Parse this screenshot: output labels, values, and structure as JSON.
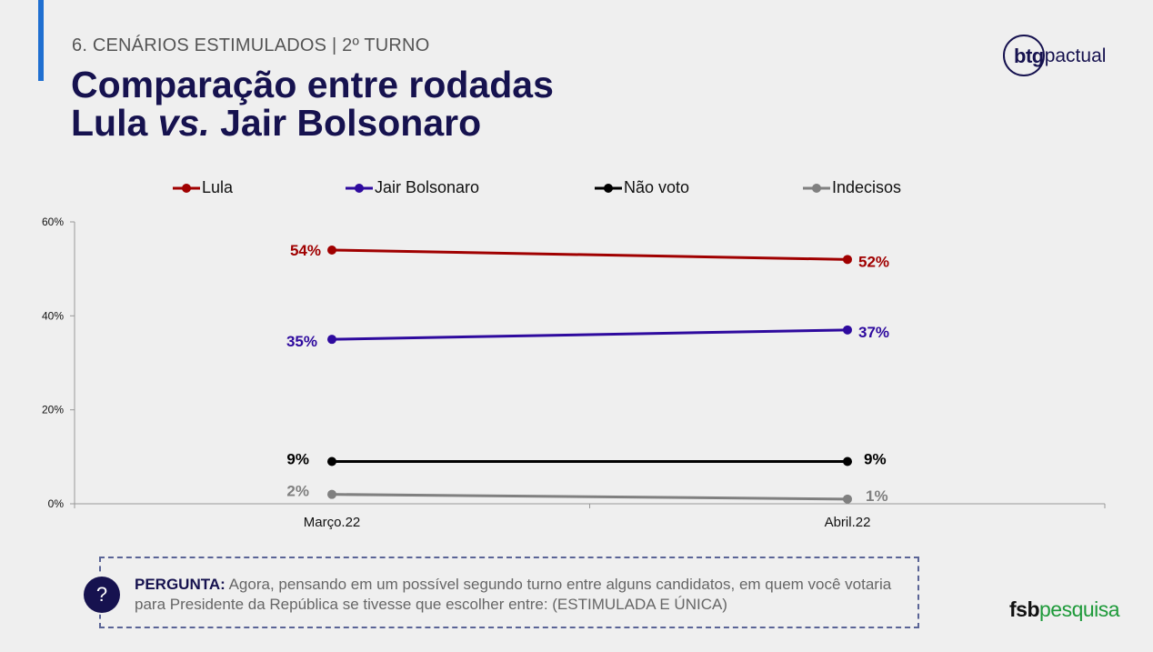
{
  "header": {
    "section": "6. CENÁRIOS ESTIMULADOS | 2º TURNO",
    "title_line1": "Comparação entre rodadas",
    "title_line2_a": "Lula ",
    "title_line2_b": "vs.",
    "title_line2_c": " Jair Bolsonaro"
  },
  "logos": {
    "btg": "btg",
    "pactual": "pactual",
    "fsb": "fsb",
    "pesquisa": "pesquisa"
  },
  "question": {
    "label": "PERGUNTA:",
    "icon": "?",
    "text": " Agora, pensando em um possível segundo turno entre alguns candidatos, em quem você votaria para Presidente da República se tivesse que escolher entre: (ESTIMULADA E ÚNICA)"
  },
  "colors": {
    "accent": "#1f6fd1",
    "title": "#16124f",
    "lula": "#a00000",
    "bolsonaro": "#2e0a9e",
    "nao_voto": "#000000",
    "indecisos": "#808080"
  },
  "chart_data": {
    "type": "line",
    "categories": [
      "Março.22",
      "Abril.22"
    ],
    "series": [
      {
        "name": "Lula",
        "values": [
          54,
          52
        ],
        "labels": [
          "54%",
          "52%"
        ],
        "color": "#a00000"
      },
      {
        "name": "Jair Bolsonaro",
        "values": [
          35,
          37
        ],
        "labels": [
          "35%",
          "37%"
        ],
        "color": "#2e0a9e"
      },
      {
        "name": "Não voto",
        "values": [
          9,
          9
        ],
        "labels": [
          "9%",
          "9%"
        ],
        "color": "#000000"
      },
      {
        "name": "Indecisos",
        "values": [
          2,
          1
        ],
        "labels": [
          "2%",
          "1%"
        ],
        "color": "#808080"
      }
    ],
    "yticks": [
      "0%",
      "20%",
      "40%",
      "60%"
    ],
    "ytick_values": [
      0,
      20,
      40,
      60
    ],
    "ylim": [
      0,
      60
    ],
    "legend_position": "top",
    "grid": false
  }
}
